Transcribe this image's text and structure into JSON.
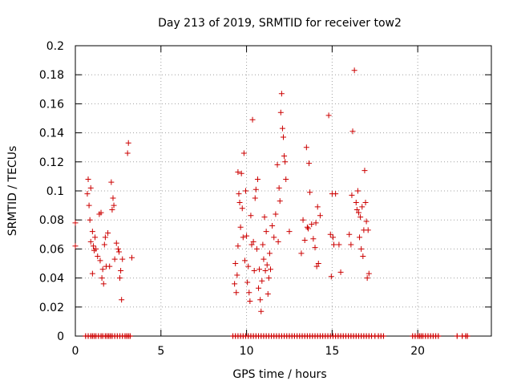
{
  "chart_data": {
    "type": "scatter",
    "title": "Day 213 of 2019, SRMTID for receiver tow2",
    "xlabel": "GPS time / hours",
    "ylabel": "SRMTID / TECUs",
    "xlim": [
      0,
      24.3
    ],
    "ylim": [
      0,
      0.2
    ],
    "xticks": [
      0,
      5,
      10,
      15,
      20
    ],
    "xtick_labels": [
      "0",
      "5",
      "10",
      "15",
      "20"
    ],
    "yticks": [
      0,
      0.02,
      0.04,
      0.06,
      0.08,
      0.1,
      0.12,
      0.14,
      0.16,
      0.18,
      0.2
    ],
    "ytick_labels": [
      "0",
      "0.02",
      "0.04",
      "0.06",
      "0.08",
      "0.1",
      "0.12",
      "0.14",
      "0.16",
      "0.18",
      "0.2"
    ],
    "grid": true,
    "marker": "+",
    "color": "#cc0000",
    "series": [
      {
        "name": "SRMTID",
        "x": [
          0.0,
          0.0,
          0.7,
          0.75,
          0.8,
          0.85,
          0.9,
          0.9,
          1.0,
          1.0,
          1.05,
          1.1,
          1.15,
          1.2,
          1.3,
          1.4,
          1.45,
          1.5,
          1.55,
          1.6,
          1.65,
          1.7,
          1.75,
          1.8,
          1.9,
          2.0,
          2.1,
          2.15,
          2.2,
          2.25,
          2.3,
          2.4,
          2.5,
          2.55,
          2.6,
          2.65,
          2.7,
          2.75,
          3.05,
          3.1,
          3.3,
          9.3,
          9.35,
          9.4,
          9.45,
          9.5,
          9.5,
          9.55,
          9.6,
          9.65,
          9.7,
          9.75,
          9.8,
          9.85,
          9.9,
          9.95,
          10.0,
          10.05,
          10.1,
          10.15,
          10.2,
          10.25,
          10.3,
          10.35,
          10.4,
          10.45,
          10.5,
          10.55,
          10.6,
          10.65,
          10.7,
          10.75,
          10.8,
          10.85,
          10.9,
          10.95,
          11.0,
          11.05,
          11.1,
          11.15,
          11.2,
          11.25,
          11.3,
          11.35,
          11.4,
          11.5,
          11.6,
          11.7,
          11.8,
          11.85,
          11.9,
          11.95,
          12.0,
          12.05,
          12.1,
          12.15,
          12.2,
          12.25,
          12.3,
          12.5,
          13.2,
          13.3,
          13.4,
          13.5,
          13.55,
          13.6,
          13.65,
          13.7,
          13.8,
          13.9,
          14.0,
          14.05,
          14.1,
          14.15,
          14.2,
          14.3,
          14.8,
          14.9,
          14.95,
          15.0,
          15.05,
          15.1,
          15.2,
          15.4,
          15.5,
          16.0,
          16.1,
          16.15,
          16.2,
          16.3,
          16.4,
          16.45,
          16.5,
          16.55,
          16.6,
          16.65,
          16.7,
          16.75,
          16.8,
          16.85,
          16.9,
          16.95,
          17.0,
          17.05,
          17.1,
          17.15
        ],
        "y": [
          0.062,
          0.078,
          0.098,
          0.108,
          0.09,
          0.08,
          0.065,
          0.102,
          0.043,
          0.072,
          0.062,
          0.059,
          0.068,
          0.06,
          0.055,
          0.084,
          0.052,
          0.085,
          0.04,
          0.046,
          0.036,
          0.063,
          0.068,
          0.048,
          0.071,
          0.048,
          0.106,
          0.087,
          0.095,
          0.09,
          0.053,
          0.064,
          0.06,
          0.058,
          0.04,
          0.045,
          0.025,
          0.053,
          0.126,
          0.133,
          0.054,
          0.036,
          0.05,
          0.03,
          0.042,
          0.062,
          0.113,
          0.098,
          0.092,
          0.075,
          0.112,
          0.088,
          0.068,
          0.126,
          0.052,
          0.1,
          0.069,
          0.037,
          0.048,
          0.03,
          0.024,
          0.083,
          0.063,
          0.149,
          0.065,
          0.045,
          0.095,
          0.101,
          0.06,
          0.108,
          0.033,
          0.046,
          0.025,
          0.017,
          0.038,
          0.063,
          0.053,
          0.082,
          0.045,
          0.072,
          0.049,
          0.029,
          0.04,
          0.057,
          0.046,
          0.076,
          0.068,
          0.084,
          0.118,
          0.065,
          0.102,
          0.093,
          0.154,
          0.167,
          0.143,
          0.137,
          0.124,
          0.12,
          0.108,
          0.072,
          0.057,
          0.08,
          0.066,
          0.13,
          0.075,
          0.074,
          0.119,
          0.099,
          0.077,
          0.067,
          0.061,
          0.078,
          0.048,
          0.089,
          0.05,
          0.083,
          0.152,
          0.07,
          0.041,
          0.098,
          0.068,
          0.063,
          0.098,
          0.063,
          0.044,
          0.07,
          0.063,
          0.097,
          0.141,
          0.183,
          0.092,
          0.087,
          0.1,
          0.085,
          0.068,
          0.082,
          0.06,
          0.089,
          0.055,
          0.073,
          0.114,
          0.092,
          0.079,
          0.04,
          0.073,
          0.043
        ]
      },
      {
        "name": "zero-values",
        "x": [
          0.6,
          0.75,
          0.9,
          1.0,
          1.1,
          1.2,
          1.35,
          1.5,
          1.6,
          1.75,
          1.85,
          1.95,
          2.05,
          2.15,
          2.3,
          2.45,
          2.6,
          2.75,
          2.9,
          3.0,
          3.1,
          3.2,
          9.2,
          9.35,
          9.5,
          9.65,
          9.8,
          9.95,
          10.1,
          10.25,
          10.4,
          10.55,
          10.7,
          10.85,
          11.0,
          11.15,
          11.3,
          11.45,
          11.6,
          11.75,
          11.9,
          12.05,
          12.2,
          12.35,
          12.5,
          12.65,
          12.8,
          12.95,
          13.1,
          13.25,
          13.4,
          13.55,
          13.7,
          13.85,
          14.0,
          14.15,
          14.3,
          14.45,
          14.6,
          14.75,
          14.9,
          15.05,
          15.2,
          15.35,
          15.5,
          15.65,
          15.8,
          15.95,
          16.1,
          16.25,
          16.4,
          16.55,
          16.7,
          16.85,
          17.0,
          17.15,
          17.3,
          17.5,
          17.7,
          17.85,
          18.0,
          19.7,
          19.85,
          20.0,
          20.1,
          20.2,
          20.3,
          20.45,
          20.6,
          20.75,
          20.9,
          21.05,
          21.2,
          22.3,
          22.6,
          22.8,
          22.9
        ]
      }
    ]
  }
}
